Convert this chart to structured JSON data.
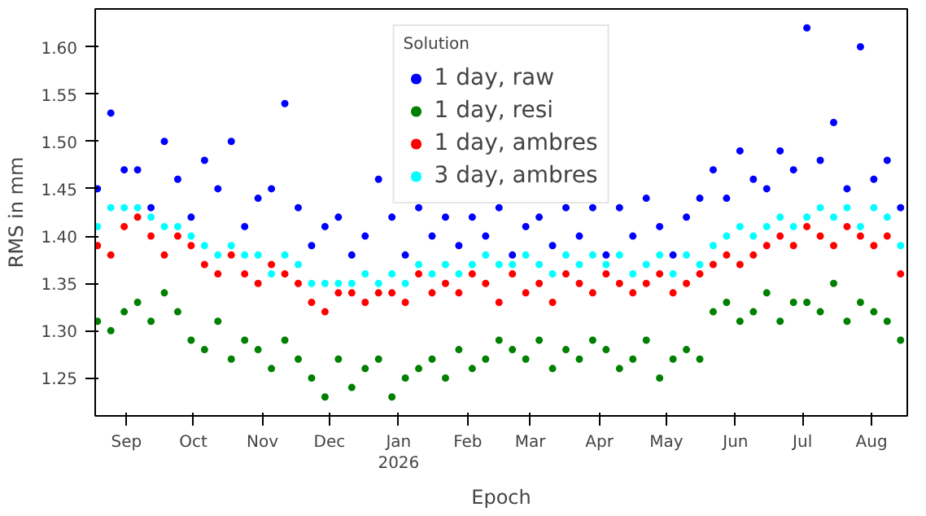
{
  "chart_data": {
    "type": "scatter",
    "xlabel": "Epoch",
    "ylabel": "RMS in mm",
    "legend_title": "Solution",
    "legend": "top",
    "grid": false,
    "marker": "circle",
    "xlim": [
      "2025-08-18",
      "2026-08-17"
    ],
    "ylim": [
      1.21,
      1.64
    ],
    "xticks": [
      {
        "value": "2025-09-01",
        "label": "Sep"
      },
      {
        "value": "2025-10-01",
        "label": "Oct"
      },
      {
        "value": "2025-11-01",
        "label": "Nov"
      },
      {
        "value": "2025-12-01",
        "label": "Dec"
      },
      {
        "value": "2026-01-01",
        "label": "Jan\n2026"
      },
      {
        "value": "2026-02-01",
        "label": "Feb"
      },
      {
        "value": "2026-03-01",
        "label": "Mar"
      },
      {
        "value": "2026-04-01",
        "label": "Apr"
      },
      {
        "value": "2026-05-01",
        "label": "May"
      },
      {
        "value": "2026-06-01",
        "label": "Jun"
      },
      {
        "value": "2026-07-01",
        "label": "Jul"
      },
      {
        "value": "2026-08-01",
        "label": "Aug"
      }
    ],
    "yticks": [
      {
        "value": 1.25,
        "label": "1.25"
      },
      {
        "value": 1.3,
        "label": "1.30"
      },
      {
        "value": 1.35,
        "label": "1.35"
      },
      {
        "value": 1.4,
        "label": "1.40"
      },
      {
        "value": 1.45,
        "label": "1.45"
      },
      {
        "value": 1.5,
        "label": "1.50"
      },
      {
        "value": 1.55,
        "label": "1.55"
      },
      {
        "value": 1.6,
        "label": "1.60"
      }
    ],
    "x": [
      "2025-08-19",
      "2025-08-25",
      "2025-08-31",
      "2025-09-06",
      "2025-09-12",
      "2025-09-18",
      "2025-09-24",
      "2025-09-30",
      "2025-10-06",
      "2025-10-12",
      "2025-10-18",
      "2025-10-24",
      "2025-10-30",
      "2025-11-05",
      "2025-11-11",
      "2025-11-17",
      "2025-11-23",
      "2025-11-29",
      "2025-12-05",
      "2025-12-11",
      "2025-12-17",
      "2025-12-23",
      "2025-12-29",
      "2026-01-04",
      "2026-01-10",
      "2026-01-16",
      "2026-01-22",
      "2026-01-28",
      "2026-02-03",
      "2026-02-09",
      "2026-02-15",
      "2026-02-21",
      "2026-02-27",
      "2026-03-05",
      "2026-03-11",
      "2026-03-17",
      "2026-03-23",
      "2026-03-29",
      "2026-04-04",
      "2026-04-10",
      "2026-04-16",
      "2026-04-22",
      "2026-04-28",
      "2026-05-04",
      "2026-05-10",
      "2026-05-16",
      "2026-05-22",
      "2026-05-28",
      "2026-06-03",
      "2026-06-09",
      "2026-06-15",
      "2026-06-21",
      "2026-06-27",
      "2026-07-03",
      "2026-07-09",
      "2026-07-15",
      "2026-07-21",
      "2026-07-27",
      "2026-08-02",
      "2026-08-08",
      "2026-08-14"
    ],
    "series": [
      {
        "name": "1 day, raw",
        "color": "#0000ff",
        "values": [
          1.45,
          1.53,
          1.47,
          1.47,
          1.43,
          1.5,
          1.46,
          1.42,
          1.48,
          1.45,
          1.5,
          1.41,
          1.44,
          1.45,
          1.54,
          1.43,
          1.39,
          1.41,
          1.42,
          1.38,
          1.4,
          1.46,
          1.42,
          1.38,
          1.43,
          1.4,
          1.42,
          1.39,
          1.42,
          1.4,
          1.43,
          1.38,
          1.41,
          1.42,
          1.39,
          1.43,
          1.4,
          1.43,
          1.38,
          1.43,
          1.4,
          1.44,
          1.41,
          1.38,
          1.42,
          1.44,
          1.47,
          1.44,
          1.49,
          1.46,
          1.45,
          1.49,
          1.47,
          1.62,
          1.48,
          1.52,
          1.45,
          1.6,
          1.46,
          1.48,
          1.43
        ]
      },
      {
        "name": "1 day, resi",
        "color": "#008000",
        "values": [
          1.31,
          1.3,
          1.32,
          1.33,
          1.31,
          1.34,
          1.32,
          1.29,
          1.28,
          1.31,
          1.27,
          1.29,
          1.28,
          1.26,
          1.29,
          1.27,
          1.25,
          1.23,
          1.27,
          1.24,
          1.26,
          1.27,
          1.23,
          1.25,
          1.26,
          1.27,
          1.25,
          1.28,
          1.26,
          1.27,
          1.29,
          1.28,
          1.27,
          1.29,
          1.26,
          1.28,
          1.27,
          1.29,
          1.28,
          1.26,
          1.27,
          1.29,
          1.25,
          1.27,
          1.28,
          1.27,
          1.32,
          1.33,
          1.31,
          1.32,
          1.34,
          1.31,
          1.33,
          1.33,
          1.32,
          1.35,
          1.31,
          1.33,
          1.32,
          1.31,
          1.29
        ]
      },
      {
        "name": "1 day, ambres",
        "color": "#ff0000",
        "values": [
          1.39,
          1.38,
          1.41,
          1.42,
          1.4,
          1.38,
          1.4,
          1.39,
          1.37,
          1.36,
          1.38,
          1.36,
          1.35,
          1.37,
          1.36,
          1.35,
          1.33,
          1.32,
          1.34,
          1.34,
          1.33,
          1.34,
          1.34,
          1.33,
          1.36,
          1.34,
          1.35,
          1.34,
          1.36,
          1.35,
          1.33,
          1.36,
          1.34,
          1.35,
          1.33,
          1.36,
          1.35,
          1.34,
          1.36,
          1.35,
          1.34,
          1.35,
          1.36,
          1.34,
          1.35,
          1.36,
          1.37,
          1.38,
          1.37,
          1.38,
          1.39,
          1.4,
          1.39,
          1.41,
          1.4,
          1.39,
          1.41,
          1.4,
          1.39,
          1.4,
          1.36
        ]
      },
      {
        "name": "3 day, ambres",
        "color": "#00ffff",
        "values": [
          1.41,
          1.43,
          1.43,
          1.43,
          1.42,
          1.41,
          1.41,
          1.4,
          1.39,
          1.38,
          1.39,
          1.38,
          1.38,
          1.36,
          1.38,
          1.37,
          1.35,
          1.35,
          1.35,
          1.35,
          1.36,
          1.35,
          1.36,
          1.35,
          1.37,
          1.36,
          1.37,
          1.36,
          1.37,
          1.38,
          1.37,
          1.37,
          1.38,
          1.37,
          1.36,
          1.38,
          1.37,
          1.38,
          1.37,
          1.38,
          1.36,
          1.37,
          1.38,
          1.36,
          1.38,
          1.37,
          1.39,
          1.4,
          1.41,
          1.4,
          1.41,
          1.42,
          1.41,
          1.42,
          1.43,
          1.42,
          1.43,
          1.41,
          1.43,
          1.42,
          1.39
        ]
      }
    ]
  }
}
